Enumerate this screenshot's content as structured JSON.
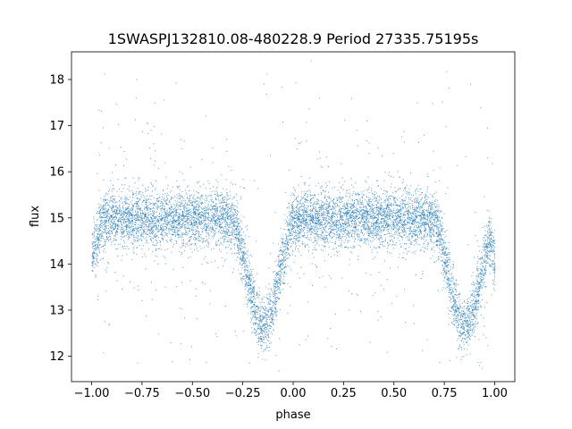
{
  "chart_data": {
    "type": "scatter",
    "title": "1SWASPJ132810.08-480228.9 Period 27335.75195s",
    "xlabel": "phase",
    "ylabel": "flux",
    "xlim": [
      -1.1,
      1.1
    ],
    "ylim": [
      11.45,
      18.6
    ],
    "x_ticks": [
      -1.0,
      -0.75,
      -0.5,
      -0.25,
      0.0,
      0.25,
      0.5,
      0.75,
      1.0
    ],
    "x_tick_labels": [
      "−1.00",
      "−0.75",
      "−0.50",
      "−0.25",
      "0.00",
      "0.25",
      "0.50",
      "0.75",
      "1.00"
    ],
    "y_ticks": [
      12,
      13,
      14,
      15,
      16,
      17,
      18
    ],
    "y_tick_labels": [
      "12",
      "13",
      "14",
      "15",
      "16",
      "17",
      "18"
    ],
    "grid": false,
    "legend": "none",
    "marker_color": "#1f77b4",
    "series": [
      {
        "baseline_flux": 15.0,
        "x_range": [
          -1.0,
          1.0
        ],
        "primary_eclipse_minima": [
          {
            "phase": -0.15,
            "flux": 12.7,
            "half_width": 0.17
          },
          {
            "phase": 0.85,
            "flux": 12.7,
            "half_width": 0.17
          }
        ],
        "eclipse_edges": [
          {
            "phase": -1.0,
            "flux": 14.2
          },
          {
            "phase": 1.0,
            "flux": 14.2
          }
        ],
        "points": [
          {
            "x": -1.0,
            "y": 14.2
          },
          {
            "x": -0.95,
            "y": 15.0
          },
          {
            "x": -0.75,
            "y": 15.0
          },
          {
            "x": -0.5,
            "y": 15.0
          },
          {
            "x": -0.35,
            "y": 14.9
          },
          {
            "x": -0.3,
            "y": 14.3
          },
          {
            "x": -0.25,
            "y": 13.7
          },
          {
            "x": -0.2,
            "y": 13.0
          },
          {
            "x": -0.15,
            "y": 12.7
          },
          {
            "x": -0.1,
            "y": 13.0
          },
          {
            "x": -0.05,
            "y": 13.7
          },
          {
            "x": 0.0,
            "y": 14.4
          },
          {
            "x": 0.05,
            "y": 15.0
          },
          {
            "x": 0.25,
            "y": 15.0
          },
          {
            "x": 0.5,
            "y": 15.0
          },
          {
            "x": 0.65,
            "y": 14.9
          },
          {
            "x": 0.7,
            "y": 14.3
          },
          {
            "x": 0.75,
            "y": 13.7
          },
          {
            "x": 0.8,
            "y": 13.0
          },
          {
            "x": 0.85,
            "y": 12.7
          },
          {
            "x": 0.9,
            "y": 13.0
          },
          {
            "x": 0.95,
            "y": 13.7
          },
          {
            "x": 1.0,
            "y": 14.2
          }
        ]
      }
    ]
  }
}
